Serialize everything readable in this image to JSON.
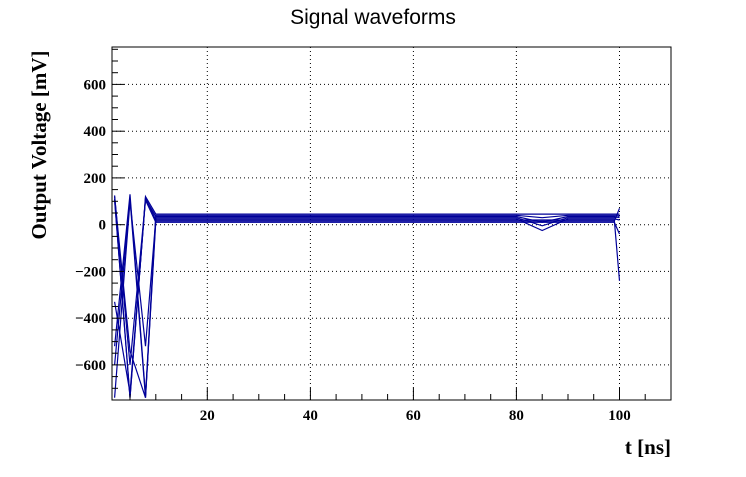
{
  "chart_data": {
    "type": "line",
    "title": "Signal waveforms",
    "xlabel": "t [ns]",
    "ylabel": "Output Voltage [mV]",
    "xlim": [
      1.5,
      110
    ],
    "ylim": [
      -750,
      760
    ],
    "x_ticks": [
      20,
      40,
      60,
      80,
      100
    ],
    "y_ticks": [
      -600,
      -400,
      -200,
      0,
      200,
      400,
      600
    ],
    "x_tick_labels": [
      "20",
      "40",
      "60",
      "80",
      "100"
    ],
    "y_tick_labels": [
      "−600",
      "−400",
      "−200",
      "0",
      "200",
      "400",
      "600"
    ],
    "grid": true,
    "grid_style": "dotted",
    "line_color": "#000099",
    "series": [
      {
        "x": [
          2,
          5,
          8,
          10,
          20,
          40,
          60,
          80,
          85,
          90,
          95,
          99,
          100
        ],
        "y": [
          110,
          -740,
          120,
          45,
          45,
          45,
          45,
          45,
          45,
          45,
          45,
          45,
          45
        ]
      },
      {
        "x": [
          2,
          5,
          8,
          10,
          20,
          40,
          60,
          80,
          85,
          90,
          95,
          99,
          100
        ],
        "y": [
          -520,
          130,
          -730,
          40,
          40,
          40,
          40,
          40,
          30,
          40,
          40,
          40,
          40
        ]
      },
      {
        "x": [
          2,
          5,
          8,
          10,
          20,
          40,
          60,
          80,
          85,
          90,
          95,
          99,
          100
        ],
        "y": [
          -330,
          -720,
          110,
          35,
          35,
          35,
          35,
          35,
          10,
          35,
          35,
          35,
          30
        ]
      },
      {
        "x": [
          2,
          5,
          8,
          10,
          20,
          40,
          60,
          80,
          85,
          90,
          95,
          99,
          100
        ],
        "y": [
          120,
          -540,
          -740,
          30,
          30,
          30,
          30,
          30,
          -5,
          30,
          30,
          30,
          35
        ]
      },
      {
        "x": [
          2,
          5,
          8,
          10,
          20,
          40,
          60,
          80,
          85,
          90,
          95,
          99,
          100
        ],
        "y": [
          -740,
          100,
          -520,
          25,
          25,
          25,
          25,
          25,
          -25,
          25,
          25,
          25,
          20
        ]
      },
      {
        "x": [
          2,
          5,
          8,
          10,
          20,
          40,
          60,
          80,
          85,
          90,
          95,
          99,
          100
        ],
        "y": [
          105,
          -740,
          115,
          20,
          20,
          20,
          20,
          20,
          20,
          20,
          20,
          20,
          -240
        ]
      },
      {
        "x": [
          2,
          5,
          8,
          10,
          20,
          40,
          60,
          80,
          85,
          90,
          95,
          99,
          100
        ],
        "y": [
          -600,
          110,
          -740,
          15,
          15,
          15,
          15,
          15,
          15,
          15,
          15,
          15,
          70
        ]
      },
      {
        "x": [
          2,
          5,
          8,
          10,
          20,
          40,
          60,
          80,
          85,
          90,
          95,
          99,
          100
        ],
        "y": [
          125,
          -600,
          105,
          10,
          10,
          10,
          10,
          10,
          10,
          10,
          10,
          10,
          -40
        ]
      }
    ]
  }
}
